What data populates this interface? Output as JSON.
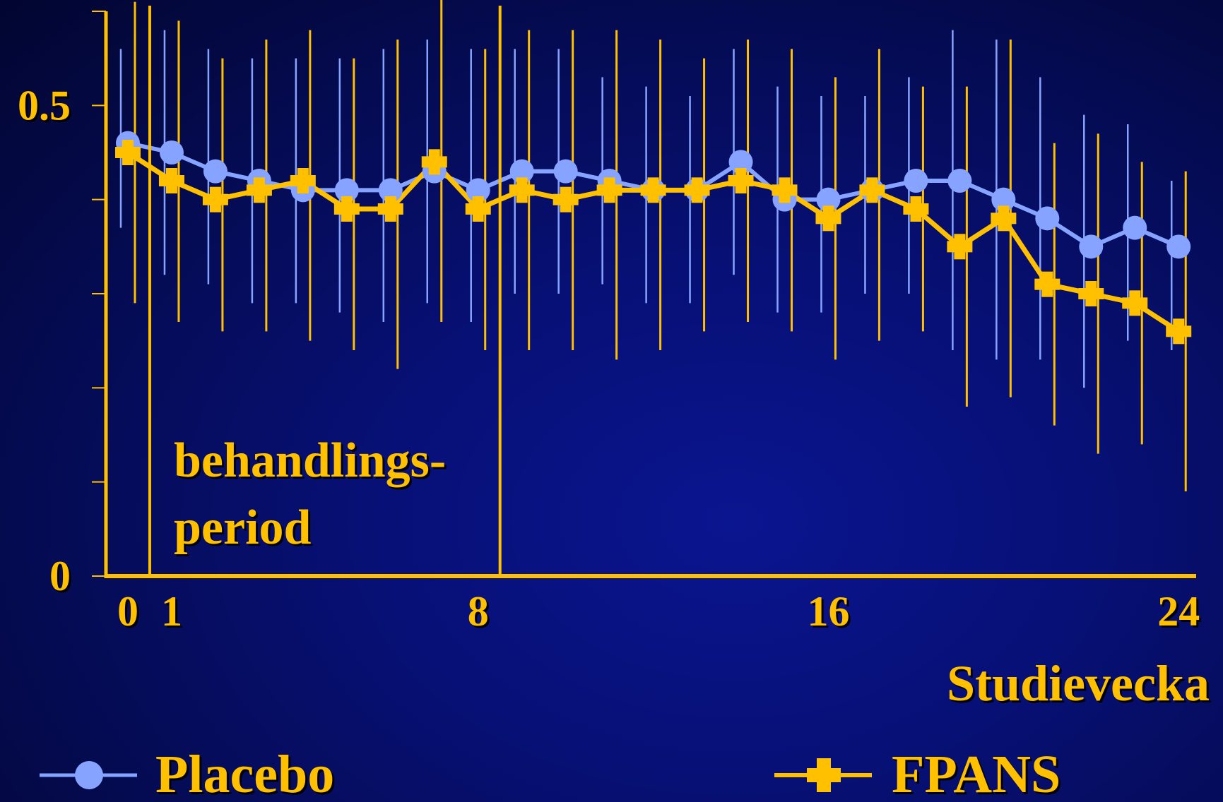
{
  "chart_data": {
    "type": "line",
    "title": "",
    "xlabel": "Studievecka",
    "ylabel": "",
    "xlim": [
      -0.5,
      24.4
    ],
    "ylim": [
      0,
      0.6
    ],
    "x_tick_labels": [
      "0",
      "1",
      "8",
      "16",
      "24"
    ],
    "x_tick_values": [
      0,
      1,
      8,
      16,
      24
    ],
    "y_tick_labels": [
      "0.5",
      "0"
    ],
    "y_tick_values": [
      0.5,
      0
    ],
    "y_minor_ticks": [
      0,
      0.1,
      0.2,
      0.3,
      0.4,
      0.5,
      0.6
    ],
    "vertical_markers": [
      0.5,
      8.5
    ],
    "annotation": [
      "behandlings-",
      "period"
    ],
    "legend_position": "bottom",
    "x": [
      0,
      1,
      2,
      3,
      4,
      5,
      6,
      7,
      8,
      9,
      10,
      11,
      12,
      13,
      14,
      15,
      16,
      17,
      18,
      19,
      20,
      21,
      22,
      23,
      24
    ],
    "series": [
      {
        "name": "Placebo",
        "color": "#86a4ff",
        "marker": "circle",
        "values": [
          0.46,
          0.45,
          0.43,
          0.42,
          0.41,
          0.41,
          0.41,
          0.43,
          0.41,
          0.43,
          0.43,
          0.42,
          0.41,
          0.41,
          0.44,
          0.4,
          0.4,
          0.41,
          0.42,
          0.42,
          0.4,
          0.38,
          0.35,
          0.37,
          0.35
        ],
        "error_low": [
          0.37,
          0.32,
          0.31,
          0.29,
          0.29,
          0.28,
          0.27,
          0.29,
          0.27,
          0.3,
          0.3,
          0.31,
          0.29,
          0.29,
          0.32,
          0.28,
          0.28,
          0.3,
          0.3,
          0.24,
          0.23,
          0.23,
          0.2,
          0.25,
          0.24
        ],
        "error_high": [
          0.56,
          0.58,
          0.56,
          0.55,
          0.55,
          0.55,
          0.56,
          0.57,
          0.56,
          0.56,
          0.56,
          0.53,
          0.52,
          0.51,
          0.56,
          0.52,
          0.51,
          0.51,
          0.53,
          0.58,
          0.57,
          0.53,
          0.49,
          0.48,
          0.42
        ]
      },
      {
        "name": "FPANS",
        "color": "#ffc000",
        "marker": "plus",
        "values": [
          0.45,
          0.42,
          0.4,
          0.41,
          0.42,
          0.39,
          0.39,
          0.44,
          0.39,
          0.41,
          0.4,
          0.41,
          0.41,
          0.41,
          0.42,
          0.41,
          0.38,
          0.41,
          0.39,
          0.35,
          0.38,
          0.31,
          0.3,
          0.29,
          0.26
        ],
        "error_low": [
          0.29,
          0.27,
          0.26,
          0.26,
          0.25,
          0.24,
          0.22,
          0.27,
          0.24,
          0.24,
          0.24,
          0.23,
          0.24,
          0.26,
          0.27,
          0.26,
          0.23,
          0.25,
          0.26,
          0.18,
          0.19,
          0.16,
          0.13,
          0.14,
          0.09
        ],
        "error_high": [
          0.61,
          0.59,
          0.55,
          0.57,
          0.58,
          0.55,
          0.57,
          0.62,
          0.56,
          0.58,
          0.58,
          0.58,
          0.57,
          0.55,
          0.57,
          0.56,
          0.53,
          0.56,
          0.52,
          0.52,
          0.57,
          0.46,
          0.47,
          0.44,
          0.43
        ]
      }
    ]
  },
  "legend": {
    "placebo_label": "Placebo",
    "fpans_label": "FPANS"
  }
}
